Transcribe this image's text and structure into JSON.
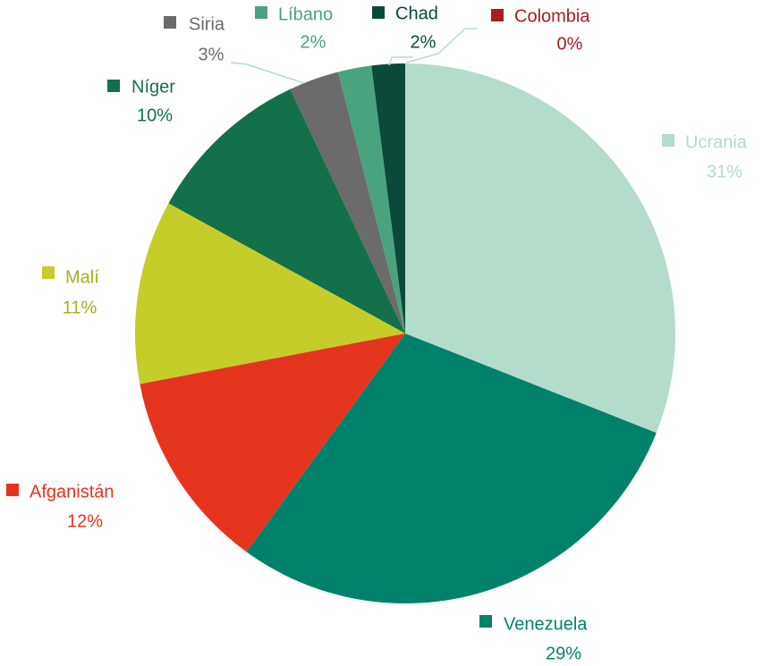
{
  "chart_data": {
    "type": "pie",
    "categories": [
      "Ucrania",
      "Venezuela",
      "Afganistán",
      "Malí",
      "Níger",
      "Siria",
      "Líbano",
      "Chad",
      "Colombia"
    ],
    "values": [
      31,
      29,
      12,
      11,
      10,
      3,
      2,
      2,
      0
    ],
    "value_labels": [
      "31%",
      "29%",
      "12%",
      "11%",
      "10%",
      "3%",
      "2%",
      "2%",
      "0%"
    ],
    "colors": [
      "#b3dccb",
      "#00826a",
      "#e5341e",
      "#c5cd2a",
      "#14704a",
      "#6b6b6b",
      "#4aa37f",
      "#0b4a3a",
      "#a51e22"
    ]
  }
}
